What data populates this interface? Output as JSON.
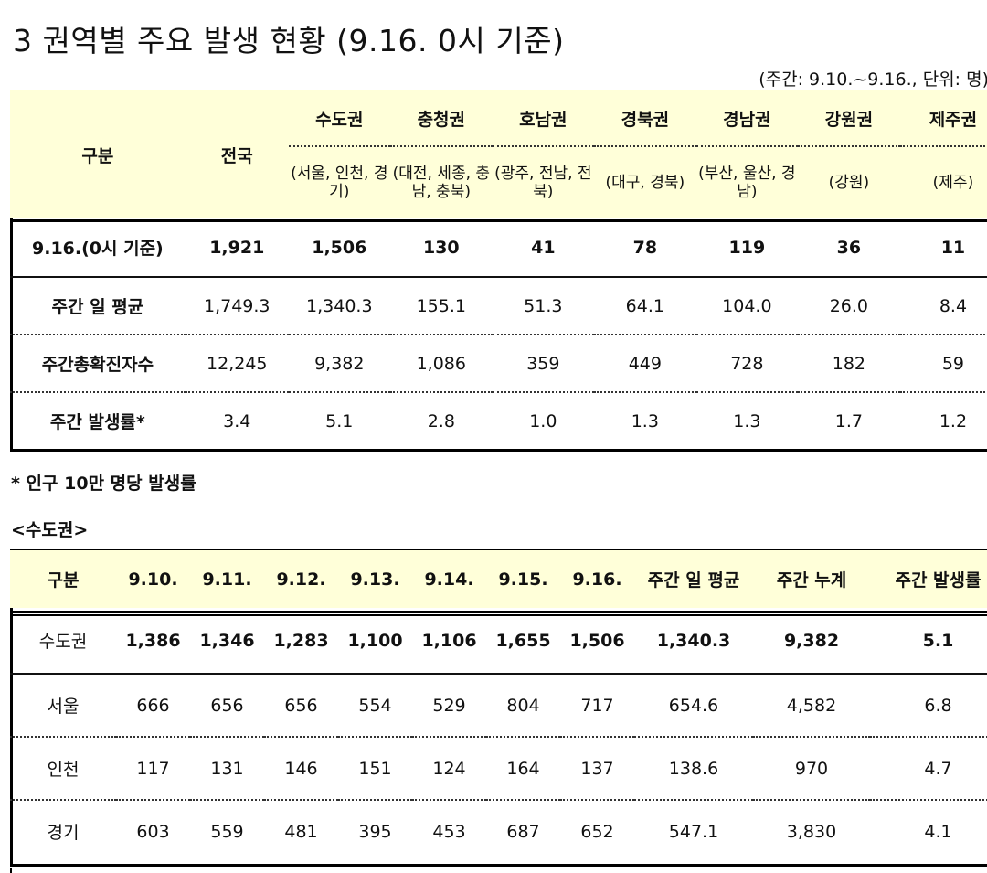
{
  "title": "3  권역별 주요 발생 현황 (9.16. 0시 기준)",
  "unit_note": "(주간: 9.10.~9.16., 단위: 명)",
  "table1": {
    "header_label": "구분",
    "nation_label": "전국",
    "regions": [
      {
        "name": "수도권",
        "sub": "(서울, 인천, 경기)"
      },
      {
        "name": "충청권",
        "sub": "(대전, 세종, 충남, 충북)"
      },
      {
        "name": "호남권",
        "sub": "(광주, 전남, 전북)"
      },
      {
        "name": "경북권",
        "sub": "(대구, 경북)"
      },
      {
        "name": "경남권",
        "sub": "(부산, 울산, 경남)"
      },
      {
        "name": "강원권",
        "sub": "(강원)"
      },
      {
        "name": "제주권",
        "sub": "(제주)"
      }
    ],
    "rows": [
      {
        "label": "9.16.(0시 기준)",
        "cells": [
          "1,921",
          "1,506",
          "130",
          "41",
          "78",
          "119",
          "36",
          "11"
        ]
      },
      {
        "label": "주간 일 평균",
        "cells": [
          "1,749.3",
          "1,340.3",
          "155.1",
          "51.3",
          "64.1",
          "104.0",
          "26.0",
          "8.4"
        ]
      },
      {
        "label": "주간총확진자수",
        "cells": [
          "12,245",
          "9,382",
          "1,086",
          "359",
          "449",
          "728",
          "182",
          "59"
        ]
      },
      {
        "label": "주간 발생률*",
        "cells": [
          "3.4",
          "5.1",
          "2.8",
          "1.0",
          "1.3",
          "1.3",
          "1.7",
          "1.2"
        ]
      }
    ]
  },
  "footnote": "* 인구 10만 명당 발생률",
  "subsection": "<수도권>",
  "table2": {
    "headers": [
      "구분",
      "9.10.",
      "9.11.",
      "9.12.",
      "9.13.",
      "9.14.",
      "9.15.",
      "9.16.",
      "주간 일 평균",
      "주간 누계",
      "주간 발생률"
    ],
    "rows": [
      [
        "수도권",
        "1,386",
        "1,346",
        "1,283",
        "1,100",
        "1,106",
        "1,655",
        "1,506",
        "1,340.3",
        "9,382",
        "5.1"
      ],
      [
        "서울",
        "666",
        "656",
        "656",
        "554",
        "529",
        "804",
        "717",
        "654.6",
        "4,582",
        "6.8"
      ],
      [
        "인천",
        "117",
        "131",
        "146",
        "151",
        "124",
        "164",
        "137",
        "138.6",
        "970",
        "4.7"
      ],
      [
        "경기",
        "603",
        "559",
        "481",
        "395",
        "453",
        "687",
        "652",
        "547.1",
        "3,830",
        "4.1"
      ]
    ]
  }
}
